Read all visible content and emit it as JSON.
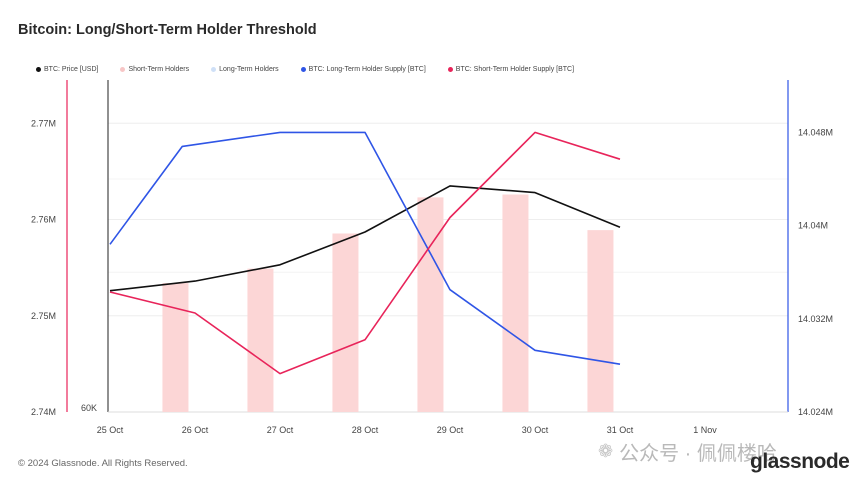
{
  "chart_data": {
    "type": "bar+line",
    "title": "Bitcoin: Long/Short-Term Holder Threshold",
    "legend": [
      {
        "label": "BTC: Price [USD]",
        "color": "#111111"
      },
      {
        "label": "Short-Term Holders",
        "color": "#f7c6c6"
      },
      {
        "label": "Long-Term Holders",
        "color": "#cfe0f7"
      },
      {
        "label": "BTC: Long-Term Holder Supply [BTC]",
        "color": "#2f55e6"
      },
      {
        "label": "BTC: Short-Term Holder Supply [BTC]",
        "color": "#e8245a"
      }
    ],
    "x_labels": [
      "25 Oct",
      "26 Oct",
      "27 Oct",
      "28 Oct",
      "29 Oct",
      "30 Oct",
      "31 Oct",
      "1 Nov"
    ],
    "left_axis": {
      "ticks": [
        "2.74M",
        "2.75M",
        "2.76M",
        "2.77M"
      ],
      "values": [
        2740000,
        2750000,
        2760000,
        2770000
      ],
      "range": [
        2740000,
        2774500
      ]
    },
    "right_axis": {
      "ticks": [
        "14.024M",
        "14.032M",
        "14.04M",
        "14.048M"
      ],
      "values": [
        14024000,
        14032000,
        14040000,
        14048000
      ],
      "range": [
        14024000,
        14052500
      ]
    },
    "aux_axis_label": "60K",
    "series": [
      {
        "name": "Short-Term Holders",
        "kind": "bar",
        "axis": "left",
        "color": "#fcd6d6",
        "x": [
          0.77,
          1.77,
          2.77,
          3.77,
          4.77,
          5.77
        ],
        "values": [
          2753400,
          2754900,
          2758550,
          2762300,
          2762600,
          2758900
        ]
      },
      {
        "name": "BTC: Price [USD]",
        "kind": "line",
        "axis": "left",
        "color": "#111111",
        "x": [
          0,
          1,
          2,
          3,
          4,
          5,
          6
        ],
        "values": [
          2752600,
          2753600,
          2755300,
          2758700,
          2763500,
          2762800,
          2759200
        ]
      },
      {
        "name": "BTC: Long-Term Holder Supply [BTC]",
        "kind": "line",
        "axis": "right",
        "color": "#2f55e6",
        "x": [
          0,
          0.85,
          2,
          3,
          4,
          5,
          6
        ],
        "values": [
          14038400,
          14046800,
          14048000,
          14048000,
          14034500,
          14029300,
          14028100
        ]
      },
      {
        "name": "BTC: Short-Term Holder Supply [BTC]",
        "kind": "line",
        "axis": "right",
        "color": "#e8245a",
        "x": [
          0,
          1,
          2,
          3,
          4,
          5,
          6
        ],
        "values": [
          14034300,
          14032500,
          14027300,
          14030200,
          14040700,
          14048000,
          14045700
        ]
      }
    ]
  },
  "footer": {
    "copyright": "© 2024 Glassnode. All Rights Reserved.",
    "brand": "glassnode"
  },
  "watermark": {
    "text": "公众号 · 佩佩楼哈"
  }
}
